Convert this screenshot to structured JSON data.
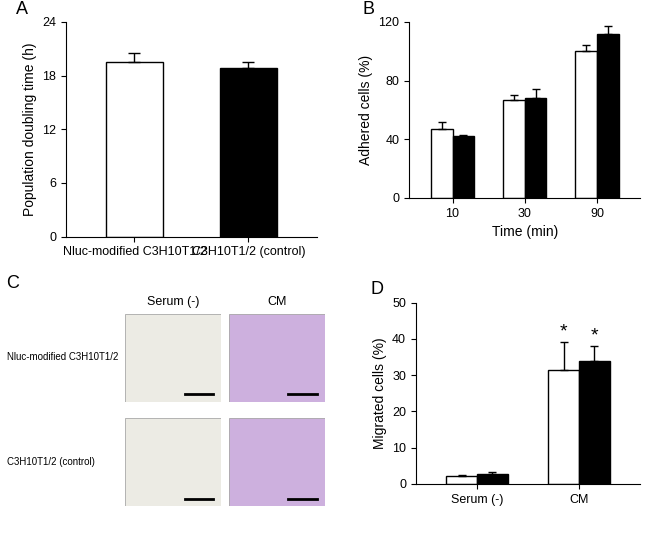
{
  "chart_data": [
    {
      "type": "bar",
      "title": "A",
      "categories": [
        "Nluc-modified C3H10T1/2",
        "C3H10T1/2 (control)"
      ],
      "values": [
        19.5,
        18.8
      ],
      "errors": [
        1.0,
        0.7
      ],
      "colors": [
        "#ffffff",
        "#000000"
      ],
      "y_label": "Population doubling time (h)",
      "ylim": [
        0,
        24
      ],
      "yticks": [
        0,
        6,
        12,
        18,
        24
      ],
      "grid": false
    },
    {
      "type": "bar",
      "title": "B",
      "categories": [
        "10",
        "30",
        "90"
      ],
      "series": [
        {
          "color": "#ffffff",
          "values": [
            47,
            66.5,
            100
          ],
          "errors": [
            5,
            4,
            4
          ]
        },
        {
          "color": "#000000",
          "values": [
            42,
            68.5,
            112
          ],
          "errors": [
            1,
            5.5,
            5
          ]
        }
      ],
      "x_label": "Time (min)",
      "y_label": "Adhered cells (%)",
      "ylim": [
        0,
        120
      ],
      "yticks": [
        0,
        40,
        80,
        120
      ],
      "grid": false
    },
    {
      "type": "bar",
      "title": "D",
      "categories": [
        "Serum (-)",
        "CM"
      ],
      "series": [
        {
          "color": "#ffffff",
          "values": [
            2.2,
            31.5
          ],
          "errors": [
            0.3,
            7.5
          ]
        },
        {
          "color": "#000000",
          "values": [
            2.8,
            34
          ],
          "errors": [
            0.4,
            4
          ]
        }
      ],
      "y_label": "Migrated cells (%)",
      "ylim": [
        0,
        50
      ],
      "yticks": [
        0,
        10,
        20,
        30,
        40,
        50
      ],
      "grid": false,
      "annotations": [
        {
          "text": "*",
          "category": "CM",
          "series": 0
        },
        {
          "text": "*",
          "category": "CM",
          "series": 1
        }
      ]
    }
  ],
  "panel_c": {
    "label": "C",
    "columns": [
      "Serum (-)",
      "CM"
    ],
    "rows": [
      "Nluc-modified C3H10T1/2",
      "C3H10T1/2 (control)"
    ]
  }
}
